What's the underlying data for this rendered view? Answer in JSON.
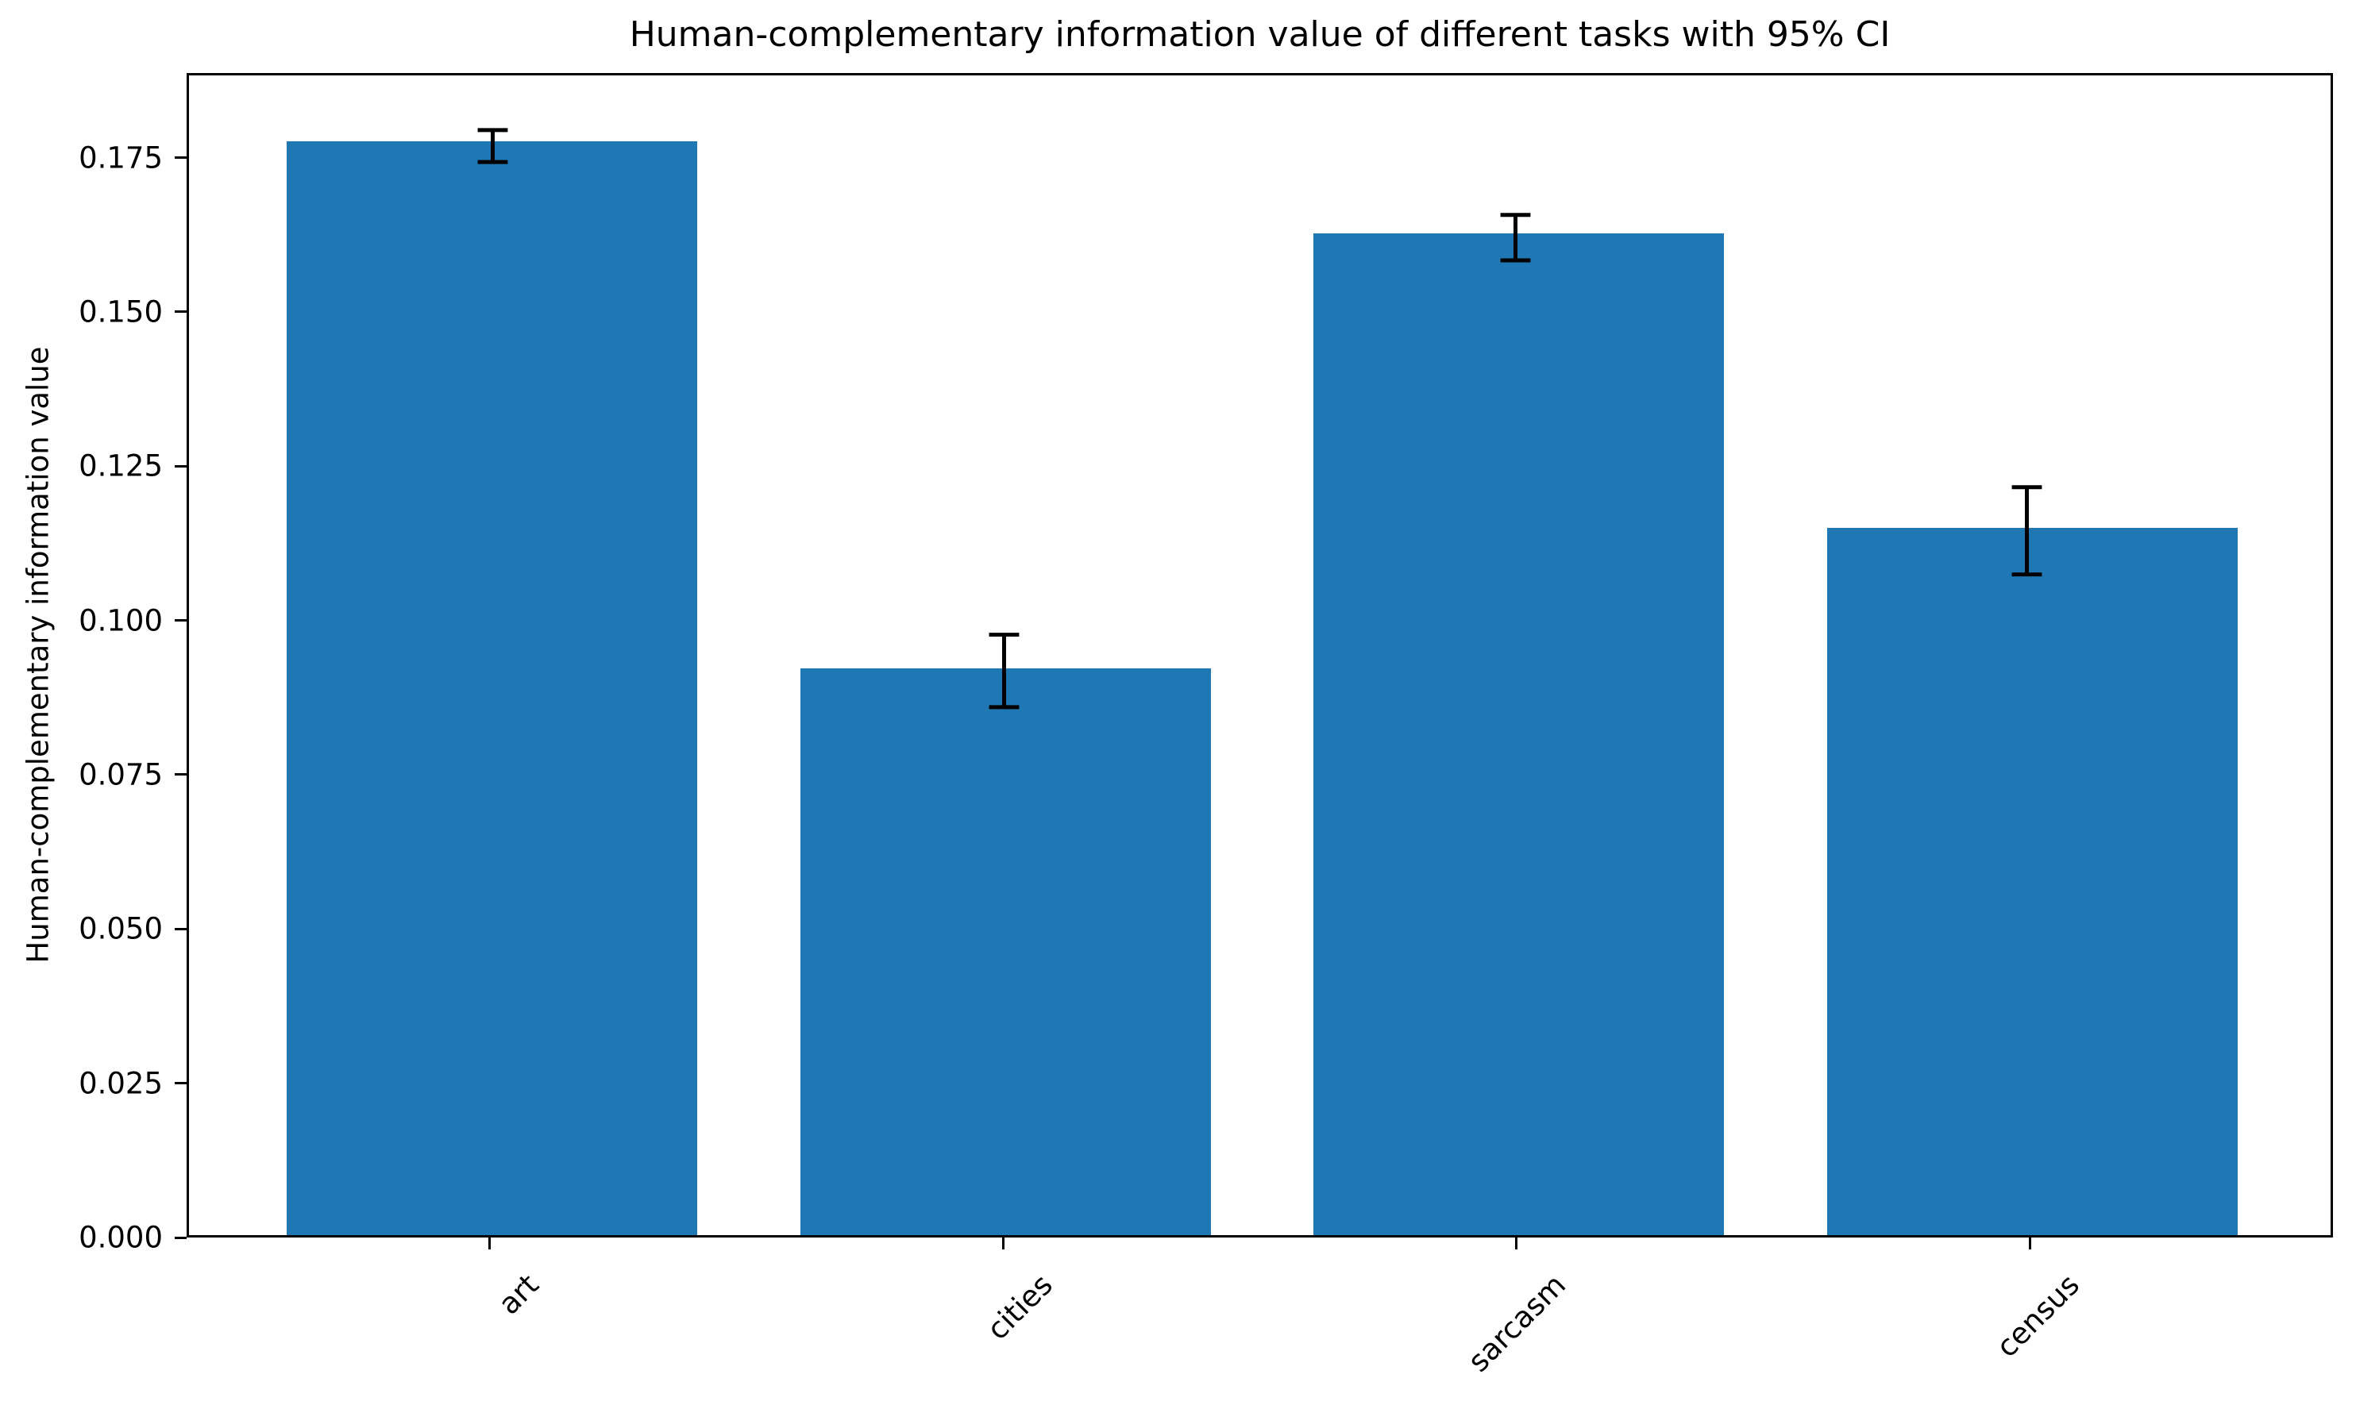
{
  "chart_data": {
    "type": "bar",
    "title": "Human-complementary information value of different tasks with 95% CI",
    "xlabel": "",
    "ylabel": "Human-complementary information value",
    "categories": [
      "art",
      "cities",
      "sarcasm",
      "census"
    ],
    "values": [
      0.1772,
      0.0918,
      0.1623,
      0.1146
    ],
    "ci95": [
      0.0026,
      0.0059,
      0.0037,
      0.0071
    ],
    "error_caps": true,
    "ylim": [
      0,
      0.1887
    ],
    "yticks": {
      "values": [
        0.0,
        0.025,
        0.05,
        0.075,
        0.1,
        0.125,
        0.15,
        0.175
      ],
      "labels": [
        "0.000",
        "0.025",
        "0.050",
        "0.075",
        "0.100",
        "0.125",
        "0.150",
        "0.175"
      ]
    },
    "grid": false,
    "legend": false,
    "x_tick_rotation_deg": 45,
    "bar_color": "#1f77b4",
    "error_color": "#000000",
    "background_color": "#ffffff"
  }
}
